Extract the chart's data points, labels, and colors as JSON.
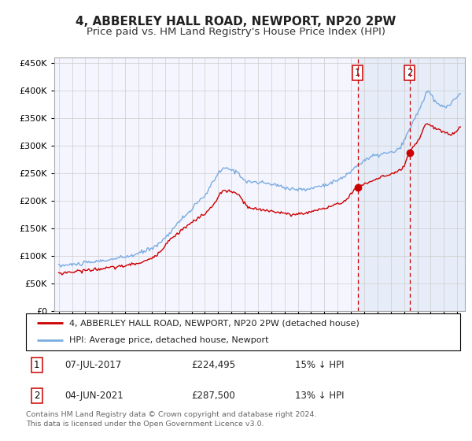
{
  "title": "4, ABBERLEY HALL ROAD, NEWPORT, NP20 2PW",
  "subtitle": "Price paid vs. HM Land Registry's House Price Index (HPI)",
  "legend_line1": "4, ABBERLEY HALL ROAD, NEWPORT, NP20 2PW (detached house)",
  "legend_line2": "HPI: Average price, detached house, Newport",
  "annotation1_date": "07-JUL-2017",
  "annotation1_price": 224495,
  "annotation1_pct": "15% ↓ HPI",
  "annotation2_date": "04-JUN-2021",
  "annotation2_price": 287500,
  "annotation2_pct": "13% ↓ HPI",
  "footer": "Contains HM Land Registry data © Crown copyright and database right 2024.\nThis data is licensed under the Open Government Licence v3.0.",
  "hpi_color": "#7aace0",
  "price_color": "#cc0000",
  "marker_color": "#cc0000",
  "dashed_line_color": "#cc0000",
  "background_color": "#ffffff",
  "plot_bg_color": "#f5f5ff",
  "grid_color": "#cccccc",
  "shade_color": "#dde8f5",
  "ylim_min": 0,
  "ylim_max": 460000,
  "yticks": [
    0,
    50000,
    100000,
    150000,
    200000,
    250000,
    300000,
    350000,
    400000,
    450000
  ],
  "title_fontsize": 11,
  "subtitle_fontsize": 9.5,
  "axis_fontsize": 8
}
